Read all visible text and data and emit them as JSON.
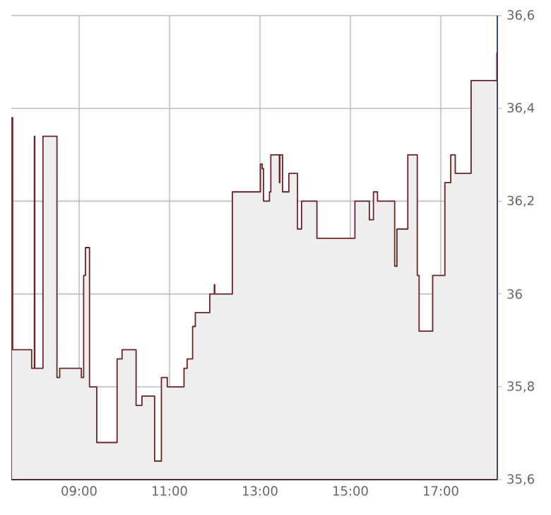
{
  "chart_data": {
    "type": "area",
    "color": "#eeeeee",
    "x": [
      7.5,
      7.53,
      7.95,
      8.01,
      8.02,
      8.2,
      8.51,
      8.57,
      9.05,
      9.1,
      9.14,
      9.23,
      9.39,
      9.84,
      9.95,
      10.26,
      10.39,
      10.67,
      10.82,
      10.95,
      11.32,
      11.39,
      11.51,
      11.57,
      11.89,
      11.99,
      12.0,
      12.39,
      13.01,
      13.05,
      13.08,
      13.21,
      13.24,
      13.43,
      13.44,
      13.5,
      13.64,
      13.83,
      13.92,
      14.26,
      15.1,
      15.42,
      15.51,
      15.6,
      15.98,
      16.03,
      16.27,
      16.48,
      16.52,
      16.82,
      17.09,
      17.22,
      17.32,
      17.67,
      18.24
    ],
    "values": [
      36.38,
      35.88,
      35.84,
      36.34,
      35.84,
      36.34,
      35.82,
      35.84,
      35.82,
      36.04,
      36.1,
      35.8,
      35.68,
      35.86,
      35.88,
      35.76,
      35.78,
      35.64,
      35.82,
      35.8,
      35.84,
      35.86,
      35.93,
      35.96,
      36.0,
      36.02,
      36.0,
      36.22,
      36.28,
      36.27,
      36.2,
      36.22,
      36.3,
      36.24,
      36.3,
      36.22,
      36.26,
      36.14,
      36.2,
      36.12,
      36.2,
      36.16,
      36.22,
      36.2,
      36.06,
      36.14,
      36.3,
      36.04,
      35.92,
      36.04,
      36.24,
      36.3,
      36.26,
      36.46,
      36.52
    ],
    "xlim": [
      7.5,
      18.25
    ],
    "xticks": [
      {
        "value": 9,
        "label": "09:00"
      },
      {
        "value": 11,
        "label": "11:00"
      },
      {
        "value": 13,
        "label": "13:00"
      },
      {
        "value": 15,
        "label": "15:00"
      },
      {
        "value": 17,
        "label": "17:00"
      }
    ],
    "ylim": [
      35.6,
      36.6
    ],
    "yticks": [
      {
        "value": 35.6,
        "label": "35,6"
      },
      {
        "value": 35.8,
        "label": "35,8"
      },
      {
        "value": 36,
        "label": "36"
      },
      {
        "value": 36.2,
        "label": "36,2"
      },
      {
        "value": 36.4,
        "label": "36,4"
      },
      {
        "value": 36.6,
        "label": "36,6"
      }
    ],
    "grid": true
  }
}
